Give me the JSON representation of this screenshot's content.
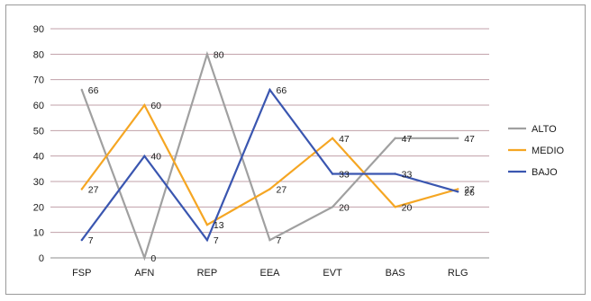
{
  "chart_data": {
    "type": "line",
    "title": "",
    "xlabel": "",
    "ylabel": "",
    "categories": [
      "FSP",
      "AFN",
      "REP",
      "EEA",
      "EVT",
      "BAS",
      "RLG"
    ],
    "ylim": [
      0,
      90
    ],
    "yticks": [
      0,
      10,
      20,
      30,
      40,
      50,
      60,
      70,
      80,
      90
    ],
    "grid": true,
    "legend_position": "right",
    "series": [
      {
        "name": "ALTO",
        "color": "#a0a0a0",
        "values": [
          66,
          0,
          80,
          7,
          20,
          47,
          47
        ]
      },
      {
        "name": "MEDIO",
        "color": "#f5a623",
        "values": [
          27,
          60,
          13,
          27,
          47,
          20,
          27
        ]
      },
      {
        "name": "BAJO",
        "color": "#3a56b0",
        "values": [
          7,
          40,
          7,
          66,
          33,
          33,
          26
        ]
      }
    ]
  }
}
